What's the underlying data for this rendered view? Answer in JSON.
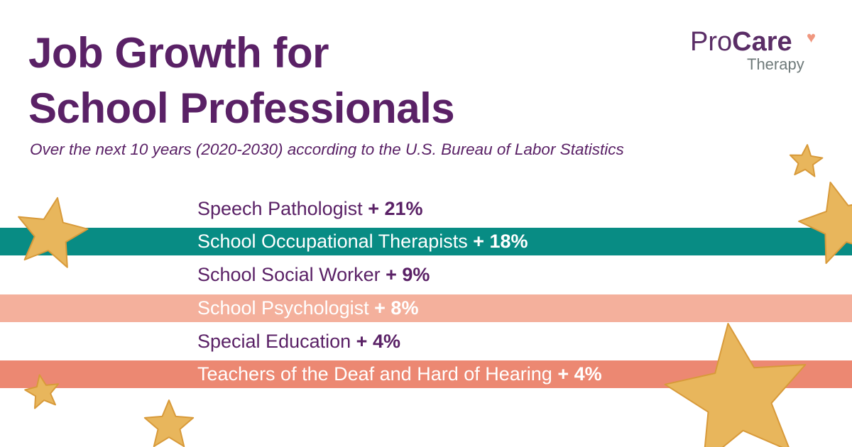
{
  "header": {
    "title_line1": "Job Growth for",
    "title_line2": "School Professionals",
    "subtitle": "Over the next 10 years (2020-2030) according to the U.S. Bureau of Labor Statistics"
  },
  "logo": {
    "pro": "Pro",
    "care": "Care",
    "therapy": "Therapy"
  },
  "rows": [
    {
      "label": "Speech Pathologist",
      "growth": "+ 21%",
      "bg": "#ffffff",
      "fg": "#5a2166"
    },
    {
      "label": "School Occupational Therapists",
      "growth": "+ 18%",
      "bg": "#088c84",
      "fg": "#ffffff"
    },
    {
      "label": "School Social Worker",
      "growth": "+ 9%",
      "bg": "#ffffff",
      "fg": "#5a2166"
    },
    {
      "label": "School Psychologist",
      "growth": "+ 8%",
      "bg": "#f4b09c",
      "fg": "#ffffff"
    },
    {
      "label": "Special Education",
      "growth": "+ 4%",
      "bg": "#ffffff",
      "fg": "#5a2166"
    },
    {
      "label": "Teachers of the Deaf and Hard of Hearing",
      "growth": "+ 4%",
      "bg": "#ec8872",
      "fg": "#ffffff"
    }
  ],
  "colors": {
    "purple": "#5a2166",
    "teal": "#088c84",
    "peach": "#f4b09c",
    "coral": "#ec8872",
    "star": "#e8b65c"
  }
}
